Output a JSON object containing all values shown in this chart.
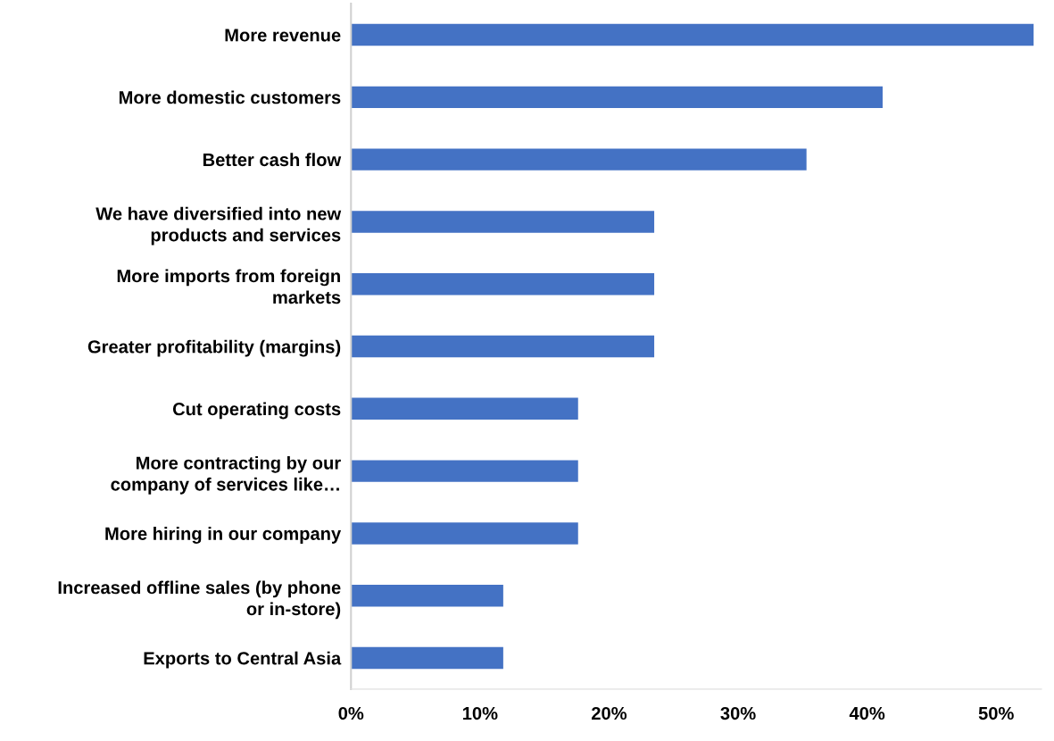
{
  "chart_data": {
    "type": "bar",
    "orientation": "horizontal",
    "categories": [
      "More revenue",
      "More domestic customers",
      "Better cash flow",
      "We have diversified into new\nproducts and services",
      "More imports from foreign\nmarkets",
      "Greater profitability (margins)",
      "Cut operating costs",
      "More contracting by our\ncompany of services like…",
      "More hiring in our company",
      "Increased offline sales (by phone\nor in-store)",
      "Exports to Central Asia"
    ],
    "values": [
      52.9,
      41.2,
      35.3,
      23.5,
      23.5,
      23.5,
      17.6,
      17.6,
      17.6,
      11.8,
      11.8
    ],
    "color": "#4472c4",
    "xlim": [
      0,
      53.5
    ],
    "xticks": [
      {
        "value": 0,
        "label": "0%"
      },
      {
        "value": 10,
        "label": "10%"
      },
      {
        "value": 20,
        "label": "20%"
      },
      {
        "value": 30,
        "label": "30%"
      },
      {
        "value": 40,
        "label": "40%"
      },
      {
        "value": 50,
        "label": "50%"
      }
    ],
    "grid": false,
    "legend": false
  }
}
